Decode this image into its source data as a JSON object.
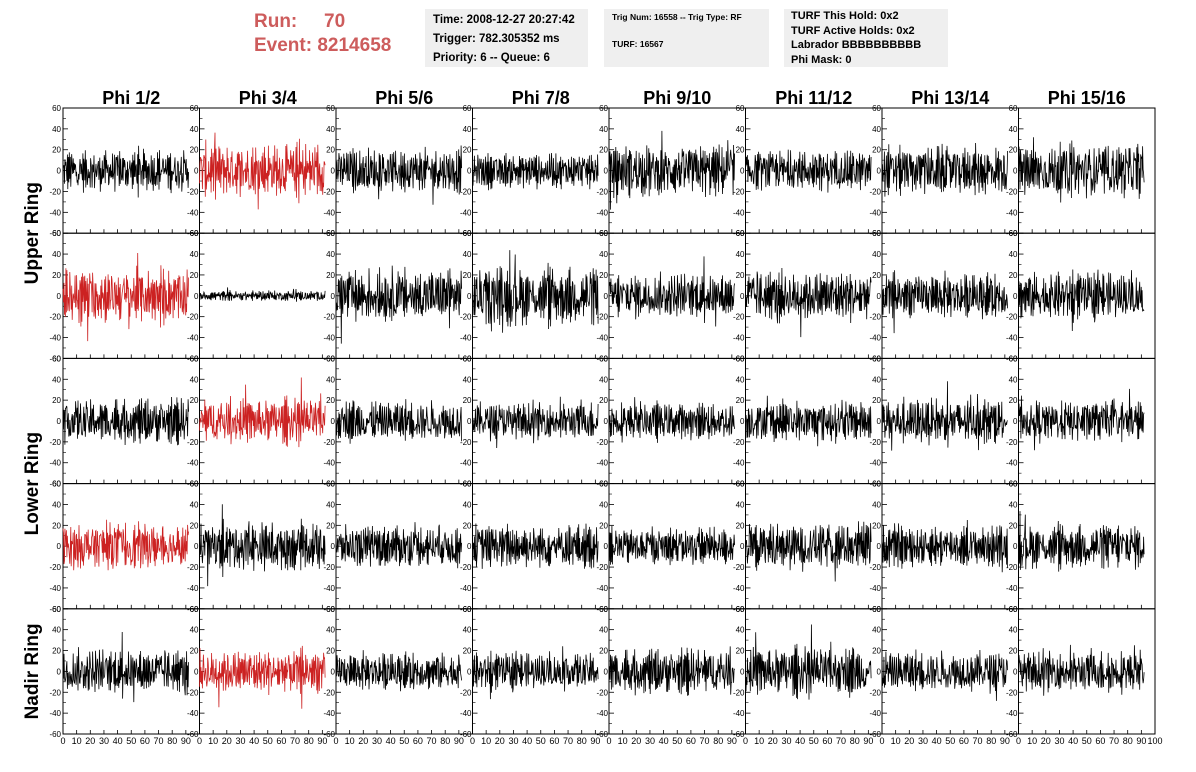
{
  "header": {
    "run_label": "Run:",
    "run_value": "70",
    "event_label": "Event:",
    "event_value": "8214658",
    "time": "Time: 2008-12-27 20:27:42",
    "trigger": "Trigger: 782.305352 ms",
    "priority": "Priority: 6 -- Queue: 6",
    "trig_num": "Trig Num: 16558 -- Trig Type: RF",
    "turf": "TURF: 16567",
    "turf_hold": "TURF This Hold: 0x2",
    "turf_active": "TURF Active Holds: 0x2",
    "labrador": "Labrador BBBBBBBBBB",
    "phi_mask": "Phi Mask: 0"
  },
  "colors": {
    "trace": "#000000",
    "highlight": "#cc2222",
    "run_text": "#cd5c5c",
    "info_box": "#efefef"
  },
  "chart_data": {
    "type": "line",
    "columns": [
      "Phi 1/2",
      "Phi 3/4",
      "Phi 5/6",
      "Phi 7/8",
      "Phi 9/10",
      "Phi 11/12",
      "Phi 13/14",
      "Phi 15/16"
    ],
    "row_labels": [
      "Upper Ring",
      "Lower Ring",
      "Nadir Ring"
    ],
    "rows": 5,
    "xlim": [
      0,
      100
    ],
    "ylim": [
      -60,
      60
    ],
    "x_ticks": [
      0,
      10,
      20,
      30,
      40,
      50,
      60,
      70,
      80,
      90,
      100
    ],
    "y_ticks": [
      -60,
      -40,
      -20,
      0,
      20,
      40,
      60
    ],
    "samples_per_trace": 260,
    "x_end": 92,
    "amplitudes": [
      [
        12,
        16,
        13,
        10,
        15,
        12,
        14,
        16
      ],
      [
        16,
        3,
        16,
        17,
        13,
        15,
        13,
        14
      ],
      [
        13,
        13,
        12,
        11,
        11,
        12,
        13,
        12
      ],
      [
        14,
        14,
        12,
        13,
        11,
        14,
        12,
        13
      ],
      [
        13,
        13,
        11,
        11,
        13,
        14,
        12,
        12
      ]
    ],
    "highlighted": [
      [
        0,
        1
      ],
      [
        1,
        0
      ],
      [
        2,
        1
      ],
      [
        3,
        0
      ],
      [
        4,
        1
      ]
    ]
  }
}
